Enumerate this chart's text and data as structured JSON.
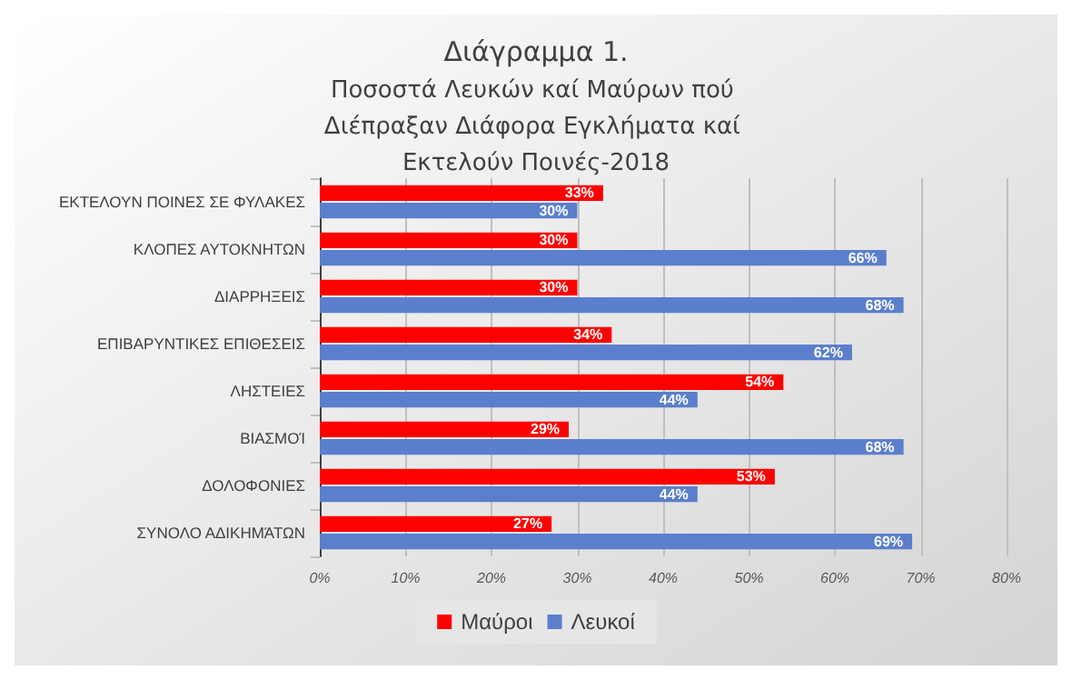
{
  "chart_data": {
    "type": "bar",
    "orientation": "horizontal",
    "title": "Διάγραμμα 1.",
    "subtitle": "Ποσοστά Λευκών καί Μαύρων πού Διέπραξαν Διάφορα Εγκλήματα καί Εκτελούν Ποινές-2018",
    "categories": [
      "ΕΚΤΕΛΟΥΝ ΠΟΙΝΕΣ ΣΕ ΦΥΛΑΚΕΣ",
      "ΚΛΟΠΕΣ ΑΥΤΟΚΝΗΤΩΝ",
      "ΔΙΑΡΡΗΞΕΙΣ",
      "ΕΠΙΒΑΡΥΝΤΙΚΕΣ ΕΠΙΘΕΣΕΙΣ",
      "ΛΗΣΤΕΙΕΣ",
      "ΒΙΑΣΜΟΊ",
      "ΔΟΛΟΦΟΝΙΕΣ",
      "ΣΥΝΟΛΟ ΑΔΙΚΗΜΆΤΩΝ"
    ],
    "series": [
      {
        "name": "Μαύροι",
        "color": "#ff0000",
        "values": [
          33,
          30,
          30,
          34,
          54,
          29,
          53,
          27
        ],
        "value_labels": [
          "33%",
          "30%",
          "30%",
          "34%",
          "54%",
          "29%",
          "53%",
          "27%"
        ]
      },
      {
        "name": "Λευκοί",
        "color": "#5b7fcc",
        "values": [
          30,
          66,
          68,
          62,
          44,
          68,
          44,
          69
        ],
        "value_labels": [
          "30%",
          "66%",
          "68%",
          "62%",
          "44%",
          "68%",
          "44%",
          "69%"
        ]
      }
    ],
    "xlim": [
      0,
      80
    ],
    "xticks": [
      {
        "value": 0,
        "label": "0%"
      },
      {
        "value": 10,
        "label": "10%"
      },
      {
        "value": 20,
        "label": "20%"
      },
      {
        "value": 30,
        "label": "30%"
      },
      {
        "value": 40,
        "label": "40%"
      },
      {
        "value": 50,
        "label": "50%"
      },
      {
        "value": 60,
        "label": "60%"
      },
      {
        "value": 70,
        "label": "70%"
      },
      {
        "value": 80,
        "label": "80%"
      }
    ],
    "grid": "x",
    "legend": "bottom"
  }
}
